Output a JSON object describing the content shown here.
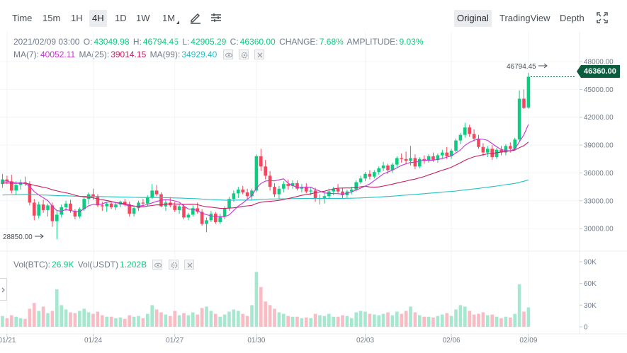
{
  "toolbar": {
    "intervals": [
      "Time",
      "15m",
      "1H",
      "4H",
      "1D",
      "1W",
      "1M"
    ],
    "active_interval": "4H",
    "views": [
      "Original",
      "TradingView",
      "Depth"
    ],
    "active_view": "Original",
    "icons": [
      "pencil-icon",
      "settings-sliders-icon",
      "fullscreen-icon"
    ]
  },
  "ohlc": {
    "date": "2021/02/09 03:00",
    "open_label": "O:",
    "open": "43049.98",
    "high_label": "H:",
    "high": "46794.45",
    "low_label": "L:",
    "low": "42905.29",
    "close_label": "C:",
    "close": "46360.00",
    "change_label": "CHANGE:",
    "change": "7.68%",
    "amplitude_label": "AMPLITUDE:",
    "amplitude": "9.03%"
  },
  "ma": {
    "ma7_label": "MA(7):",
    "ma7": "40052.11",
    "ma25_label": "MA(25):",
    "ma25": "39014.15",
    "ma99_label": "MA(99):",
    "ma99": "34929.40"
  },
  "volume_legend": {
    "btc_label": "Vol(BTC):",
    "btc": "26.9K",
    "usdt_label": "Vol(USDT)",
    "usdt": "1.202B"
  },
  "price_badge": "46360.00",
  "high_marker": "46794.45",
  "low_marker": "28850.00",
  "colors": {
    "up": "#0ecb81",
    "down": "#f6465d",
    "up_volume": "#a6e8cf",
    "down_volume": "#f9bcc4",
    "ma7": "#c932d6",
    "ma25": "#c91e60",
    "ma99": "#22c2c5",
    "badge": "#0b5d3e"
  },
  "chart_data": {
    "type": "candlestick",
    "pair": "BTC/USDT",
    "interval": "4H",
    "price_axis_ticks": [
      "48000.00",
      "45000.00",
      "42000.00",
      "39000.00",
      "36000.00",
      "33000.00",
      "30000.00"
    ],
    "volume_axis_ticks": [
      "90K",
      "60K",
      "30K",
      "0"
    ],
    "ylim_price": [
      27800,
      49300
    ],
    "ylim_volume": [
      0,
      90000
    ],
    "x_labels": [
      "01/21",
      "01/24",
      "01/27",
      "01/30",
      "02/03",
      "02/06",
      "02/09"
    ],
    "x_label_candle_index": [
      1,
      20,
      38,
      56,
      80,
      99,
      116
    ],
    "candles": [
      [
        34800,
        35900,
        34400,
        35300,
        15000
      ],
      [
        35300,
        35700,
        34800,
        35100,
        12000
      ],
      [
        35100,
        35800,
        33800,
        34100,
        16000
      ],
      [
        34100,
        35100,
        33600,
        34700,
        14000
      ],
      [
        34700,
        35300,
        34200,
        35000,
        12000
      ],
      [
        35000,
        35600,
        34600,
        34800,
        11000
      ],
      [
        34800,
        35100,
        32500,
        32800,
        25000
      ],
      [
        32800,
        33200,
        30900,
        31400,
        33000
      ],
      [
        31400,
        32900,
        31100,
        32600,
        22000
      ],
      [
        32600,
        33100,
        31700,
        32000,
        28000
      ],
      [
        32000,
        32700,
        31300,
        32500,
        19000
      ],
      [
        32500,
        32800,
        30200,
        30800,
        22000
      ],
      [
        30800,
        31900,
        28850,
        31500,
        52000
      ],
      [
        31500,
        32600,
        31200,
        32300,
        30000
      ],
      [
        32300,
        33000,
        31900,
        32700,
        24000
      ],
      [
        32700,
        33100,
        31700,
        31900,
        20000
      ],
      [
        31900,
        32100,
        31000,
        31300,
        19000
      ],
      [
        31300,
        32300,
        31100,
        32100,
        22000
      ],
      [
        32100,
        33400,
        31900,
        33200,
        25000
      ],
      [
        33200,
        33900,
        32600,
        33700,
        20000
      ],
      [
        33700,
        34300,
        33100,
        33400,
        18000
      ],
      [
        33400,
        33700,
        32300,
        32500,
        21000
      ],
      [
        32500,
        32900,
        31900,
        32400,
        16000
      ],
      [
        32400,
        32900,
        31800,
        32700,
        14000
      ],
      [
        32700,
        32900,
        32100,
        32300,
        14000
      ],
      [
        32300,
        32800,
        32000,
        32600,
        12000
      ],
      [
        32600,
        33000,
        32300,
        32900,
        13000
      ],
      [
        32900,
        33200,
        32400,
        32600,
        11000
      ],
      [
        32600,
        32900,
        31300,
        31600,
        16000
      ],
      [
        31600,
        32400,
        31300,
        32200,
        14000
      ],
      [
        32200,
        33000,
        31900,
        32800,
        15000
      ],
      [
        32800,
        33200,
        32400,
        32700,
        12000
      ],
      [
        32700,
        33600,
        32400,
        33400,
        18000
      ],
      [
        33400,
        34800,
        33200,
        34100,
        30000
      ],
      [
        34100,
        34700,
        33500,
        33700,
        24000
      ],
      [
        33700,
        33900,
        32300,
        32400,
        20000
      ],
      [
        32400,
        33100,
        31900,
        32800,
        17000
      ],
      [
        32800,
        33400,
        32300,
        32500,
        15000
      ],
      [
        32500,
        32900,
        31800,
        32000,
        22000
      ],
      [
        32000,
        32700,
        31600,
        32400,
        16000
      ],
      [
        32400,
        32600,
        31000,
        31200,
        19000
      ],
      [
        31200,
        31700,
        30900,
        31500,
        16000
      ],
      [
        31500,
        32500,
        31300,
        32200,
        20000
      ],
      [
        32200,
        32800,
        31600,
        31800,
        17000
      ],
      [
        31800,
        32100,
        30300,
        30500,
        26000
      ],
      [
        30500,
        31200,
        29600,
        30900,
        28000
      ],
      [
        30900,
        31900,
        30700,
        31600,
        22000
      ],
      [
        31600,
        31800,
        30500,
        30700,
        18000
      ],
      [
        30700,
        31600,
        30500,
        31300,
        14000
      ],
      [
        31300,
        32400,
        31000,
        32200,
        17000
      ],
      [
        32200,
        33400,
        31900,
        33200,
        21000
      ],
      [
        33200,
        34100,
        32900,
        33800,
        24000
      ],
      [
        33800,
        34500,
        33300,
        34200,
        22000
      ],
      [
        34200,
        34600,
        33700,
        33900,
        18000
      ],
      [
        33900,
        34300,
        33200,
        33500,
        15000
      ],
      [
        33500,
        34300,
        33000,
        34100,
        30000
      ],
      [
        34100,
        38000,
        33900,
        37800,
        76000
      ],
      [
        37800,
        38600,
        36200,
        36700,
        55000
      ],
      [
        36700,
        37400,
        35300,
        35700,
        35000
      ],
      [
        35700,
        36200,
        34100,
        34500,
        30000
      ],
      [
        34500,
        34900,
        33400,
        33700,
        25000
      ],
      [
        33700,
        34600,
        33200,
        34300,
        20000
      ],
      [
        34300,
        35100,
        33900,
        34800,
        18000
      ],
      [
        34800,
        35300,
        34200,
        34600,
        15000
      ],
      [
        34600,
        35200,
        34300,
        34900,
        14000
      ],
      [
        34900,
        35200,
        34100,
        34300,
        14000
      ],
      [
        34300,
        34800,
        33900,
        34500,
        12000
      ],
      [
        34500,
        34900,
        33800,
        34000,
        13000
      ],
      [
        34000,
        34500,
        33600,
        34100,
        12000
      ],
      [
        34100,
        34400,
        32900,
        33200,
        18000
      ],
      [
        33200,
        33700,
        32600,
        33300,
        16000
      ],
      [
        33300,
        33900,
        32700,
        33500,
        15000
      ],
      [
        33500,
        34300,
        33200,
        34000,
        18000
      ],
      [
        34000,
        34500,
        33600,
        34300,
        14000
      ],
      [
        34300,
        34800,
        33800,
        34000,
        14000
      ],
      [
        34000,
        34400,
        33300,
        33600,
        16000
      ],
      [
        33600,
        34200,
        33300,
        34000,
        15000
      ],
      [
        34000,
        34500,
        33700,
        34200,
        12000
      ],
      [
        34200,
        35200,
        34000,
        35000,
        20000
      ],
      [
        35000,
        35700,
        34800,
        35400,
        22000
      ],
      [
        35400,
        36100,
        35100,
        35900,
        21000
      ],
      [
        35900,
        36300,
        35300,
        35600,
        18000
      ],
      [
        35600,
        36300,
        35400,
        36100,
        17000
      ],
      [
        36100,
        36700,
        35800,
        36500,
        16000
      ],
      [
        36500,
        37200,
        36200,
        36800,
        18000
      ],
      [
        36800,
        37000,
        35900,
        36300,
        20000
      ],
      [
        36300,
        37100,
        36000,
        36900,
        16000
      ],
      [
        36900,
        37800,
        36600,
        37600,
        21000
      ],
      [
        37600,
        38100,
        37100,
        37500,
        18000
      ],
      [
        37500,
        38300,
        36900,
        37300,
        22000
      ],
      [
        37300,
        38900,
        36800,
        37600,
        28000
      ],
      [
        37600,
        38000,
        36400,
        36700,
        20000
      ],
      [
        36700,
        37700,
        36500,
        37500,
        16000
      ],
      [
        37500,
        37900,
        37000,
        37300,
        14000
      ],
      [
        37300,
        38000,
        37100,
        37800,
        14000
      ],
      [
        37800,
        38200,
        37200,
        37400,
        13000
      ],
      [
        37400,
        38100,
        37100,
        37900,
        15000
      ],
      [
        37900,
        38500,
        37600,
        38200,
        17000
      ],
      [
        38200,
        38800,
        37500,
        37800,
        19000
      ],
      [
        37800,
        38600,
        37500,
        38400,
        15000
      ],
      [
        38400,
        39700,
        38200,
        39500,
        24000
      ],
      [
        39500,
        40300,
        39100,
        40100,
        30000
      ],
      [
        40100,
        41400,
        39800,
        40900,
        28000
      ],
      [
        40900,
        41200,
        39900,
        40200,
        22000
      ],
      [
        40200,
        40700,
        39400,
        39700,
        17000
      ],
      [
        39700,
        40100,
        38600,
        38800,
        18000
      ],
      [
        38800,
        39200,
        37800,
        38200,
        20000
      ],
      [
        38200,
        38900,
        37700,
        38600,
        16000
      ],
      [
        38600,
        39000,
        37400,
        37700,
        17000
      ],
      [
        37700,
        38700,
        37500,
        38500,
        14000
      ],
      [
        38500,
        38900,
        37900,
        38200,
        12000
      ],
      [
        38200,
        39100,
        37900,
        38900,
        14000
      ],
      [
        38900,
        39300,
        38200,
        38600,
        13000
      ],
      [
        38600,
        39800,
        38400,
        39600,
        18000
      ],
      [
        39600,
        44900,
        39400,
        44000,
        59000
      ],
      [
        44000,
        45000,
        42900,
        43000,
        21000
      ],
      [
        43050,
        46794,
        42905,
        46360,
        26900
      ]
    ]
  }
}
